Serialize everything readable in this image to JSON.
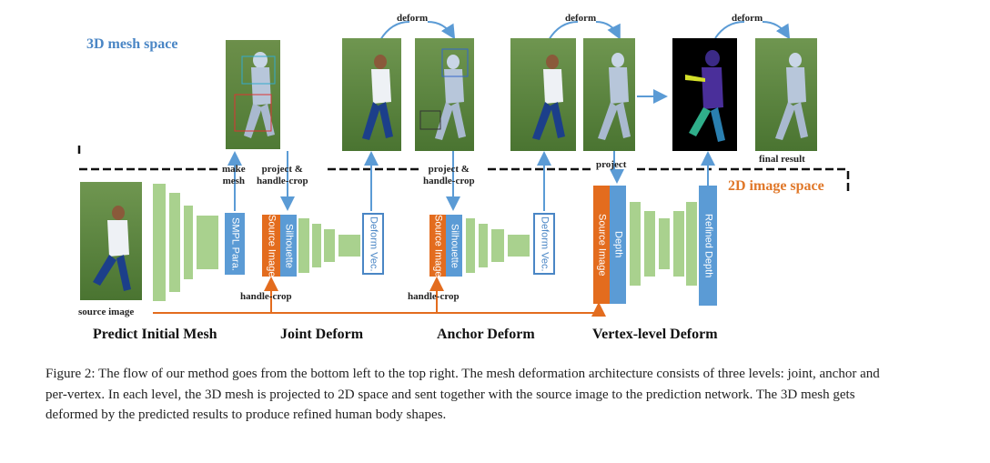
{
  "figure": {
    "mesh_space_label": "3D mesh space",
    "image_space_label": "2D image space",
    "deform_labels": [
      "deform",
      "deform",
      "deform"
    ],
    "make_mesh": [
      "make",
      "mesh"
    ],
    "project_handle_crop_1": [
      "project &",
      "handle-crop"
    ],
    "project_handle_crop_2": [
      "project &",
      "handle-crop"
    ],
    "project_label": "project",
    "final_result": "final result",
    "source_image_label": "source image",
    "handle_crop_1": "handle-crop",
    "handle_crop_2": "handle-crop",
    "bars": {
      "smpl": "SMPL Para.",
      "source1": "Source Image",
      "silhouette1": "Silhouette",
      "deform_vec1": "Deform Vec.",
      "source2": "Source Image",
      "silhouette2": "Silhouette",
      "deform_vec2": "Deform Vec.",
      "source3": "Source Image",
      "depth": "Depth",
      "refined_depth": "Refined Depth"
    },
    "stages": [
      "Predict Initial Mesh",
      "Joint Deform",
      "Anchor Deform",
      "Vertex-level Deform"
    ],
    "colors": {
      "blue": "#5b9bd5",
      "orange": "#e36c1e",
      "green": "#a9d18e",
      "mesh_text": "#4a86c5",
      "image_text": "#e0782a"
    }
  },
  "caption": "Figure 2: The flow of our method goes from the bottom left to the top right. The mesh deformation architecture consists of three levels: joint, anchor and per-vertex. In each level, the 3D mesh is projected to 2D space and sent together with the source image to the prediction network. The 3D mesh gets deformed by the predicted results to produce refined human body shapes."
}
